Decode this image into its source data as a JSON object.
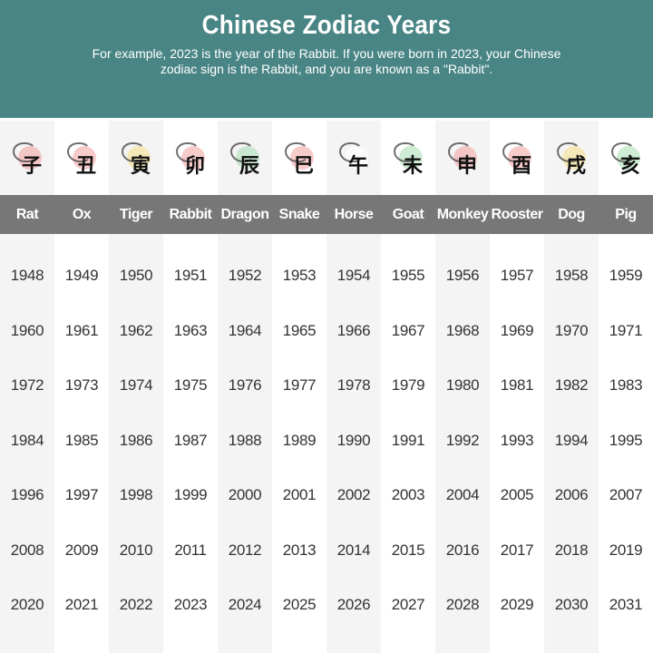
{
  "header": {
    "title": "Chinese Zodiac Years",
    "subtitle": "For example, 2023 is the year of the Rabbit. If you were born in 2023, your Chinese zodiac sign is the Rabbit, and you are known as a \"Rabbit\"."
  },
  "colors": {
    "header_bg": "#4a8585",
    "label_bar": "#777777",
    "alt_column": "#f4f4f4"
  },
  "animals": [
    {
      "label": "Rat",
      "glyph": "子",
      "icon": "rat-icon",
      "accent": "#f2a0a0"
    },
    {
      "label": "Ox",
      "glyph": "丑",
      "icon": "ox-icon",
      "accent": "#f2a0a0"
    },
    {
      "label": "Tiger",
      "glyph": "寅",
      "icon": "tiger-icon",
      "accent": "#f5e08a"
    },
    {
      "label": "Rabbit",
      "glyph": "卯",
      "icon": "rabbit-icon",
      "accent": "#f2a0a0"
    },
    {
      "label": "Dragon",
      "glyph": "辰",
      "icon": "dragon-icon",
      "accent": "#a8dcb0"
    },
    {
      "label": "Snake",
      "glyph": "巳",
      "icon": "snake-icon",
      "accent": "#f2a0a0"
    },
    {
      "label": "Horse",
      "glyph": "午",
      "icon": "horse-icon",
      "accent": "#ffffff"
    },
    {
      "label": "Goat",
      "glyph": "未",
      "icon": "goat-icon",
      "accent": "#a8dcb0"
    },
    {
      "label": "Monkey",
      "glyph": "申",
      "icon": "monkey-icon",
      "accent": "#f2a0a0"
    },
    {
      "label": "Rooster",
      "glyph": "酉",
      "icon": "rooster-icon",
      "accent": "#f2a0a0"
    },
    {
      "label": "Dog",
      "glyph": "戌",
      "icon": "dog-icon",
      "accent": "#f5e08a"
    },
    {
      "label": "Pig",
      "glyph": "亥",
      "icon": "pig-icon",
      "accent": "#a8dcb0"
    }
  ],
  "years": [
    [
      "1948",
      "1949",
      "1950",
      "1951",
      "1952",
      "1953",
      "1954",
      "1955",
      "1956",
      "1957",
      "1958",
      "1959"
    ],
    [
      "1960",
      "1961",
      "1962",
      "1963",
      "1964",
      "1965",
      "1966",
      "1967",
      "1968",
      "1969",
      "1970",
      "1971"
    ],
    [
      "1972",
      "1973",
      "1974",
      "1975",
      "1976",
      "1977",
      "1978",
      "1979",
      "1980",
      "1981",
      "1982",
      "1983"
    ],
    [
      "1984",
      "1985",
      "1986",
      "1987",
      "1988",
      "1989",
      "1990",
      "1991",
      "1992",
      "1993",
      "1994",
      "1995"
    ],
    [
      "1996",
      "1997",
      "1998",
      "1999",
      "2000",
      "2001",
      "2002",
      "2003",
      "2004",
      "2005",
      "2006",
      "2007"
    ],
    [
      "2008",
      "2009",
      "2010",
      "2011",
      "2012",
      "2013",
      "2014",
      "2015",
      "2016",
      "2017",
      "2018",
      "2019"
    ],
    [
      "2020",
      "2021",
      "2022",
      "2023",
      "2024",
      "2025",
      "2026",
      "2027",
      "2028",
      "2029",
      "2030",
      "2031"
    ]
  ]
}
